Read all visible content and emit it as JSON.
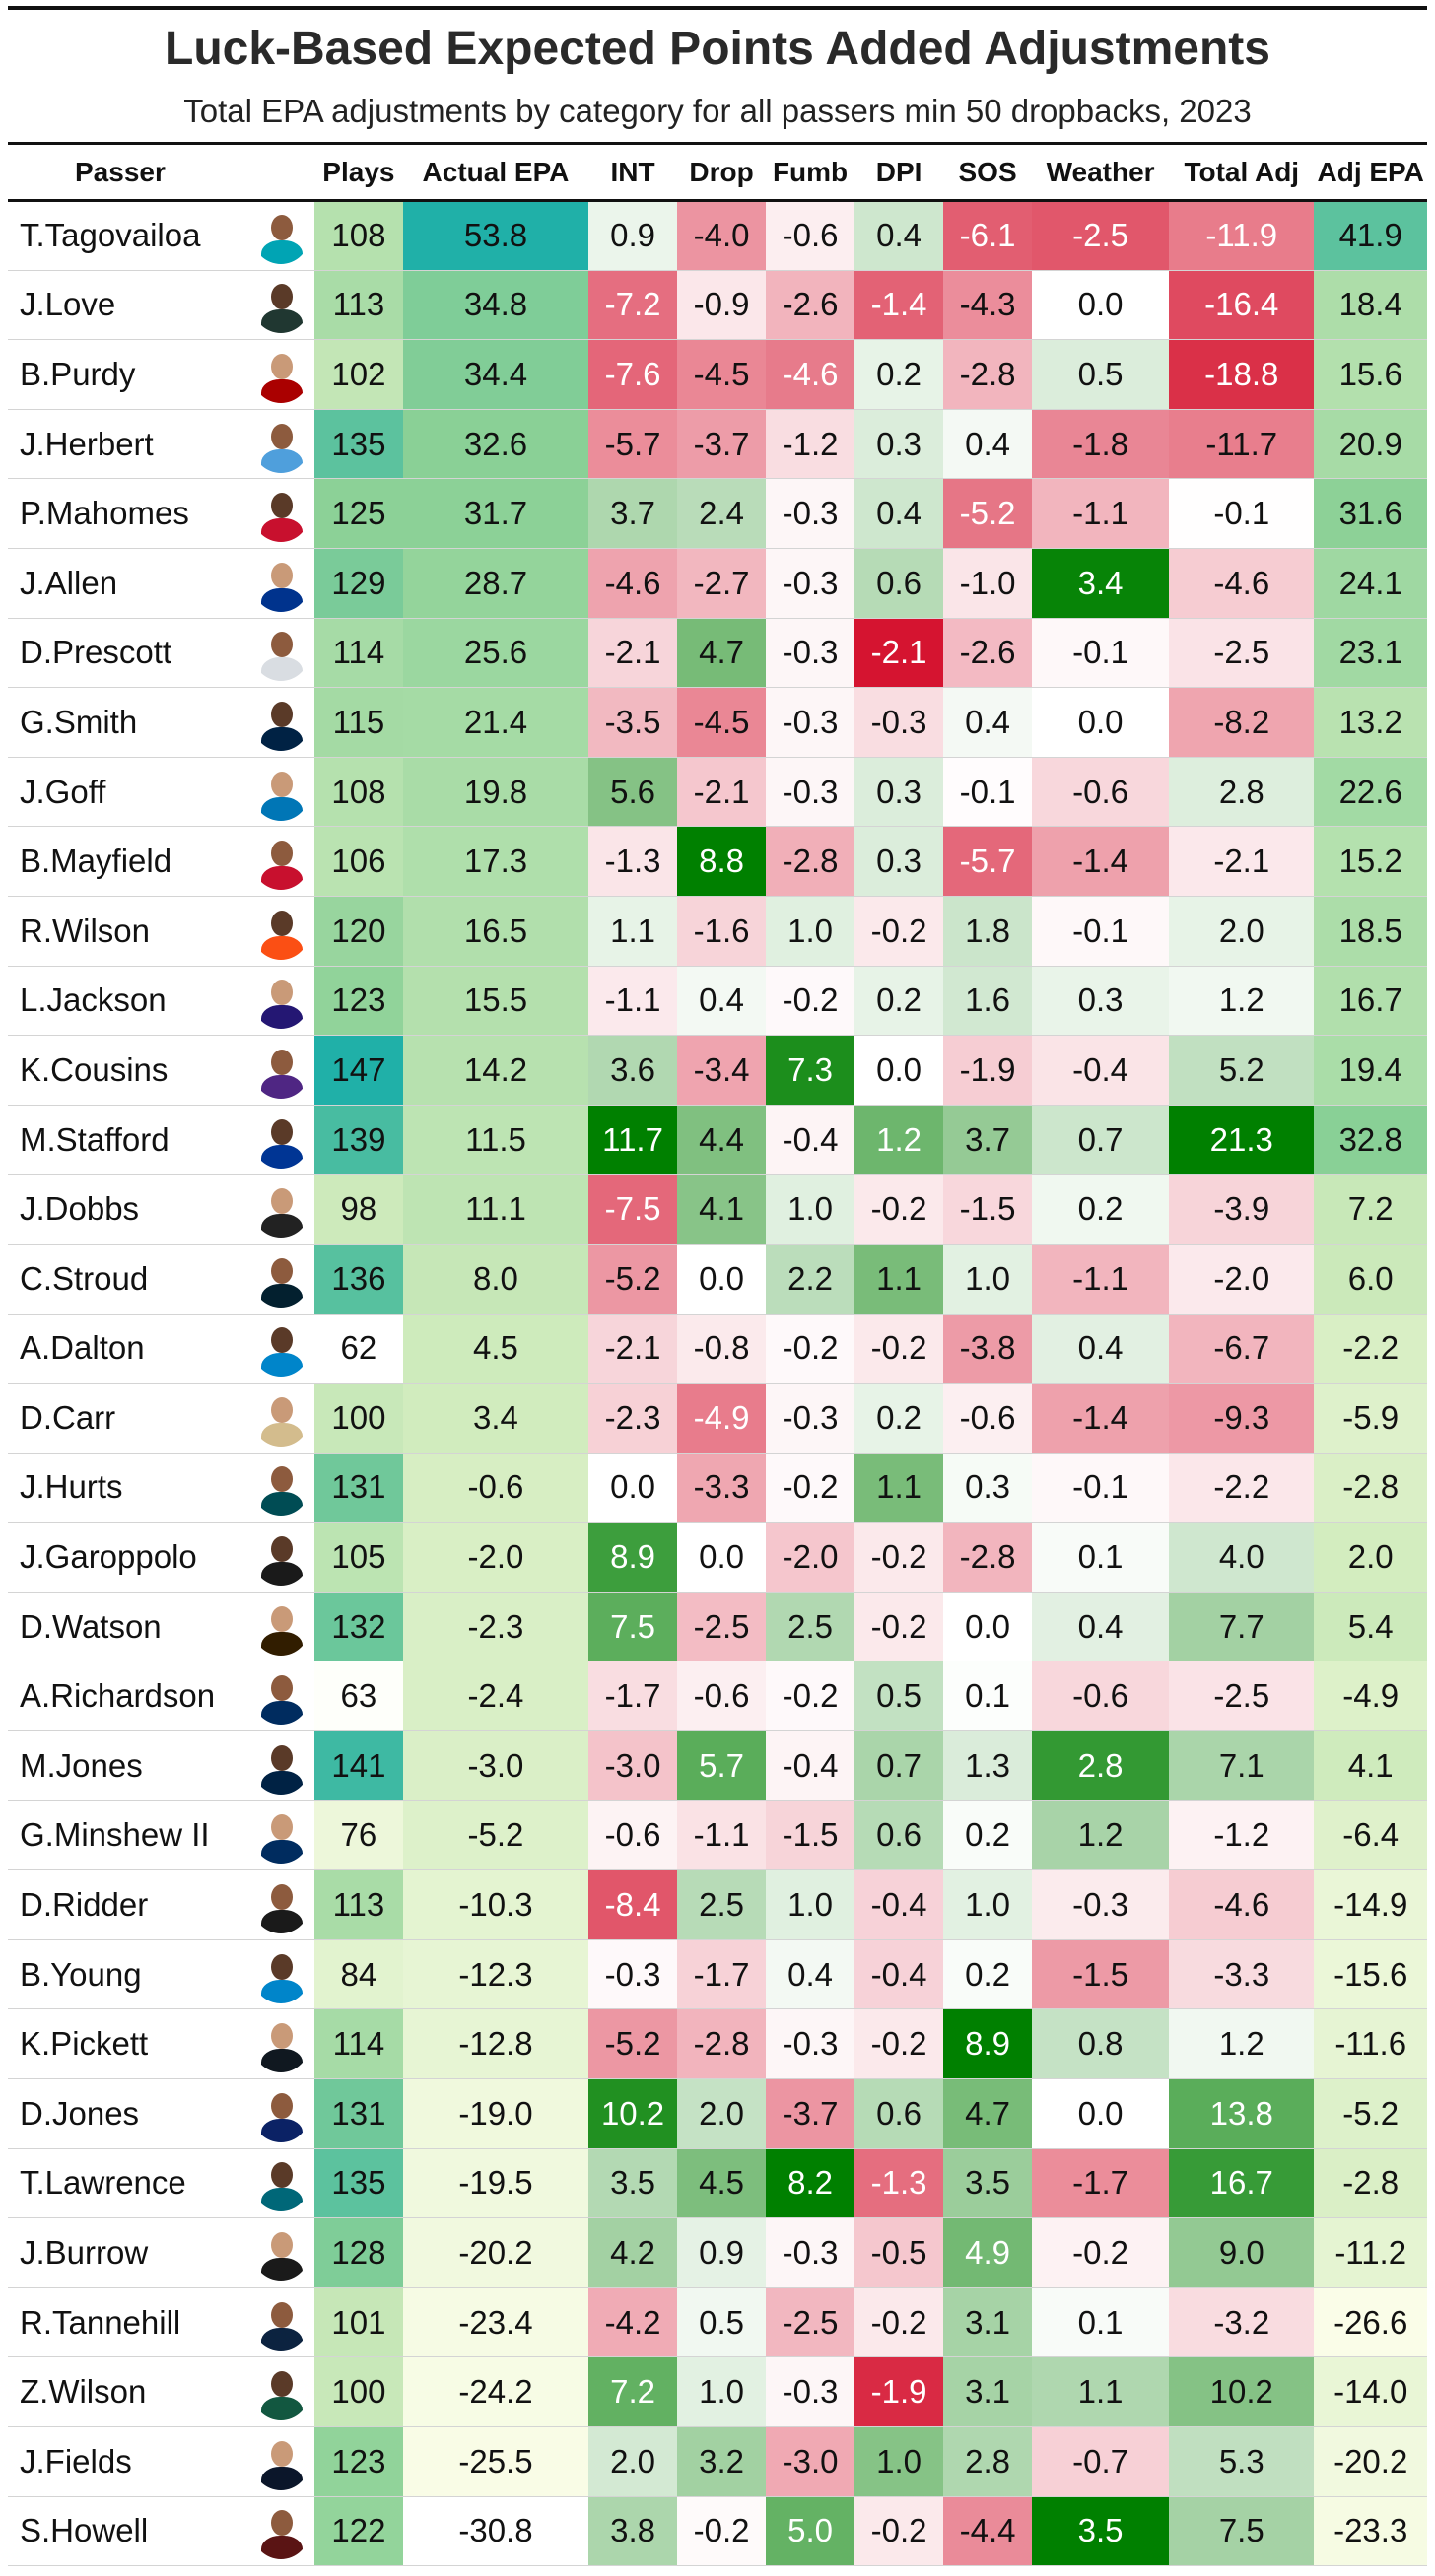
{
  "title": "Luck-Based Expected Points Added Adjustments",
  "subtitle": "Total EPA adjustments by category for all passers min 50 dropbacks, 2023",
  "chart_data": {
    "type": "table",
    "columns": [
      "Passer",
      "",
      "Plays",
      "Actual EPA",
      "INT",
      "Drop",
      "Fumb",
      "DPI",
      "SOS",
      "Weather",
      "Total Adj",
      "Adj EPA"
    ],
    "rows": [
      {
        "passer": "T.Tagovailoa",
        "team_color": "#00a4b4",
        "plays": 108,
        "actual": 53.8,
        "int": 0.9,
        "drop": -4.0,
        "fumb": -0.6,
        "dpi": 0.4,
        "sos": -6.1,
        "weather": -2.5,
        "total": -11.9,
        "adj": 41.9
      },
      {
        "passer": "J.Love",
        "team_color": "#203731",
        "plays": 113,
        "actual": 34.8,
        "int": -7.2,
        "drop": -0.9,
        "fumb": -2.6,
        "dpi": -1.4,
        "sos": -4.3,
        "weather": 0.0,
        "total": -16.4,
        "adj": 18.4
      },
      {
        "passer": "B.Purdy",
        "team_color": "#aa0000",
        "plays": 102,
        "actual": 34.4,
        "int": -7.6,
        "drop": -4.5,
        "fumb": -4.6,
        "dpi": 0.2,
        "sos": -2.8,
        "weather": 0.5,
        "total": -18.8,
        "adj": 15.6
      },
      {
        "passer": "J.Herbert",
        "team_color": "#4f9fdc",
        "plays": 135,
        "actual": 32.6,
        "int": -5.7,
        "drop": -3.7,
        "fumb": -1.2,
        "dpi": 0.3,
        "sos": 0.4,
        "weather": -1.8,
        "total": -11.7,
        "adj": 20.9
      },
      {
        "passer": "P.Mahomes",
        "team_color": "#c8102e",
        "plays": 125,
        "actual": 31.7,
        "int": 3.7,
        "drop": 2.4,
        "fumb": -0.3,
        "dpi": 0.4,
        "sos": -5.2,
        "weather": -1.1,
        "total": -0.1,
        "adj": 31.6
      },
      {
        "passer": "J.Allen",
        "team_color": "#00338d",
        "plays": 129,
        "actual": 28.7,
        "int": -4.6,
        "drop": -2.7,
        "fumb": -0.3,
        "dpi": 0.6,
        "sos": -1.0,
        "weather": 3.4,
        "total": -4.6,
        "adj": 24.1
      },
      {
        "passer": "D.Prescott",
        "team_color": "#d9dde2",
        "plays": 114,
        "actual": 25.6,
        "int": -2.1,
        "drop": 4.7,
        "fumb": -0.3,
        "dpi": -2.1,
        "sos": -2.6,
        "weather": -0.1,
        "total": -2.5,
        "adj": 23.1
      },
      {
        "passer": "G.Smith",
        "team_color": "#002244",
        "plays": 115,
        "actual": 21.4,
        "int": -3.5,
        "drop": -4.5,
        "fumb": -0.3,
        "dpi": -0.3,
        "sos": 0.4,
        "weather": 0.0,
        "total": -8.2,
        "adj": 13.2
      },
      {
        "passer": "J.Goff",
        "team_color": "#0076b6",
        "plays": 108,
        "actual": 19.8,
        "int": 5.6,
        "drop": -2.1,
        "fumb": -0.3,
        "dpi": 0.3,
        "sos": -0.1,
        "weather": -0.6,
        "total": 2.8,
        "adj": 22.6
      },
      {
        "passer": "B.Mayfield",
        "team_color": "#c8102e",
        "plays": 106,
        "actual": 17.3,
        "int": -1.3,
        "drop": 8.8,
        "fumb": -2.8,
        "dpi": 0.3,
        "sos": -5.7,
        "weather": -1.4,
        "total": -2.1,
        "adj": 15.2
      },
      {
        "passer": "R.Wilson",
        "team_color": "#fb4f14",
        "plays": 120,
        "actual": 16.5,
        "int": 1.1,
        "drop": -1.6,
        "fumb": 1.0,
        "dpi": -0.2,
        "sos": 1.8,
        "weather": -0.1,
        "total": 2.0,
        "adj": 18.5
      },
      {
        "passer": "L.Jackson",
        "team_color": "#241773",
        "plays": 123,
        "actual": 15.5,
        "int": -1.1,
        "drop": 0.4,
        "fumb": -0.2,
        "dpi": 0.2,
        "sos": 1.6,
        "weather": 0.3,
        "total": 1.2,
        "adj": 16.7
      },
      {
        "passer": "K.Cousins",
        "team_color": "#4f2683",
        "plays": 147,
        "actual": 14.2,
        "int": 3.6,
        "drop": -3.4,
        "fumb": 7.3,
        "dpi": 0.0,
        "sos": -1.9,
        "weather": -0.4,
        "total": 5.2,
        "adj": 19.4
      },
      {
        "passer": "M.Stafford",
        "team_color": "#003594",
        "plays": 139,
        "actual": 11.5,
        "int": 11.7,
        "drop": 4.4,
        "fumb": -0.4,
        "dpi": 1.2,
        "sos": 3.7,
        "weather": 0.7,
        "total": 21.3,
        "adj": 32.8
      },
      {
        "passer": "J.Dobbs",
        "team_color": "#222222",
        "plays": 98,
        "actual": 11.1,
        "int": -7.5,
        "drop": 4.1,
        "fumb": 1.0,
        "dpi": -0.2,
        "sos": -1.5,
        "weather": 0.2,
        "total": -3.9,
        "adj": 7.2
      },
      {
        "passer": "C.Stroud",
        "team_color": "#03202f",
        "plays": 136,
        "actual": 8.0,
        "int": -5.2,
        "drop": 0.0,
        "fumb": 2.2,
        "dpi": 1.1,
        "sos": 1.0,
        "weather": -1.1,
        "total": -2.0,
        "adj": 6.0
      },
      {
        "passer": "A.Dalton",
        "team_color": "#0085ca",
        "plays": 62,
        "actual": 4.5,
        "int": -2.1,
        "drop": -0.8,
        "fumb": -0.2,
        "dpi": -0.2,
        "sos": -3.8,
        "weather": 0.4,
        "total": -6.7,
        "adj": -2.2
      },
      {
        "passer": "D.Carr",
        "team_color": "#d3bc8d",
        "plays": 100,
        "actual": 3.4,
        "int": -2.3,
        "drop": -4.9,
        "fumb": -0.3,
        "dpi": 0.2,
        "sos": -0.6,
        "weather": -1.4,
        "total": -9.3,
        "adj": -5.9
      },
      {
        "passer": "J.Hurts",
        "team_color": "#004c54",
        "plays": 131,
        "actual": -0.6,
        "int": 0.0,
        "drop": -3.3,
        "fumb": -0.2,
        "dpi": 1.1,
        "sos": 0.3,
        "weather": -0.1,
        "total": -2.2,
        "adj": -2.8
      },
      {
        "passer": "J.Garoppolo",
        "team_color": "#1a1a1a",
        "plays": 105,
        "actual": -2.0,
        "int": 8.9,
        "drop": 0.0,
        "fumb": -2.0,
        "dpi": -0.2,
        "sos": -2.8,
        "weather": 0.1,
        "total": 4.0,
        "adj": 2.0
      },
      {
        "passer": "D.Watson",
        "team_color": "#311d00",
        "plays": 132,
        "actual": -2.3,
        "int": 7.5,
        "drop": -2.5,
        "fumb": 2.5,
        "dpi": -0.2,
        "sos": 0.0,
        "weather": 0.4,
        "total": 7.7,
        "adj": 5.4
      },
      {
        "passer": "A.Richardson",
        "team_color": "#002c5f",
        "plays": 63,
        "actual": -2.4,
        "int": -1.7,
        "drop": -0.6,
        "fumb": -0.2,
        "dpi": 0.5,
        "sos": 0.1,
        "weather": -0.6,
        "total": -2.5,
        "adj": -4.9
      },
      {
        "passer": "M.Jones",
        "team_color": "#002244",
        "plays": 141,
        "actual": -3.0,
        "int": -3.0,
        "drop": 5.7,
        "fumb": -0.4,
        "dpi": 0.7,
        "sos": 1.3,
        "weather": 2.8,
        "total": 7.1,
        "adj": 4.1
      },
      {
        "passer": "G.Minshew II",
        "team_color": "#002c5f",
        "plays": 76,
        "actual": -5.2,
        "int": -0.6,
        "drop": -1.1,
        "fumb": -1.5,
        "dpi": 0.6,
        "sos": 0.2,
        "weather": 1.2,
        "total": -1.2,
        "adj": -6.4
      },
      {
        "passer": "D.Ridder",
        "team_color": "#1a1a1a",
        "plays": 113,
        "actual": -10.3,
        "int": -8.4,
        "drop": 2.5,
        "fumb": 1.0,
        "dpi": -0.4,
        "sos": 1.0,
        "weather": -0.3,
        "total": -4.6,
        "adj": -14.9
      },
      {
        "passer": "B.Young",
        "team_color": "#0085ca",
        "plays": 84,
        "actual": -12.3,
        "int": -0.3,
        "drop": -1.7,
        "fumb": 0.4,
        "dpi": -0.4,
        "sos": 0.2,
        "weather": -1.5,
        "total": -3.3,
        "adj": -15.6
      },
      {
        "passer": "K.Pickett",
        "team_color": "#101820",
        "plays": 114,
        "actual": -12.8,
        "int": -5.2,
        "drop": -2.8,
        "fumb": -0.3,
        "dpi": -0.2,
        "sos": 8.9,
        "weather": 0.8,
        "total": 1.2,
        "adj": -11.6
      },
      {
        "passer": "D.Jones",
        "team_color": "#0b2265",
        "plays": 131,
        "actual": -19.0,
        "int": 10.2,
        "drop": 2.0,
        "fumb": -3.7,
        "dpi": 0.6,
        "sos": 4.7,
        "weather": 0.0,
        "total": 13.8,
        "adj": -5.2
      },
      {
        "passer": "T.Lawrence",
        "team_color": "#006778",
        "plays": 135,
        "actual": -19.5,
        "int": 3.5,
        "drop": 4.5,
        "fumb": 8.2,
        "dpi": -1.3,
        "sos": 3.5,
        "weather": -1.7,
        "total": 16.7,
        "adj": -2.8
      },
      {
        "passer": "J.Burrow",
        "team_color": "#1a1a1a",
        "plays": 128,
        "actual": -20.2,
        "int": 4.2,
        "drop": 0.9,
        "fumb": -0.3,
        "dpi": -0.5,
        "sos": 4.9,
        "weather": -0.2,
        "total": 9.0,
        "adj": -11.2
      },
      {
        "passer": "R.Tannehill",
        "team_color": "#0c2340",
        "plays": 101,
        "actual": -23.4,
        "int": -4.2,
        "drop": 0.5,
        "fumb": -2.5,
        "dpi": -0.2,
        "sos": 3.1,
        "weather": 0.1,
        "total": -3.2,
        "adj": -26.6
      },
      {
        "passer": "Z.Wilson",
        "team_color": "#125740",
        "plays": 100,
        "actual": -24.2,
        "int": 7.2,
        "drop": 1.0,
        "fumb": -0.3,
        "dpi": -1.9,
        "sos": 3.1,
        "weather": 1.1,
        "total": 10.2,
        "adj": -14.0
      },
      {
        "passer": "J.Fields",
        "team_color": "#0b162a",
        "plays": 123,
        "actual": -25.5,
        "int": 2.0,
        "drop": 3.2,
        "fumb": -3.0,
        "dpi": 1.0,
        "sos": 2.8,
        "weather": -0.7,
        "total": 5.3,
        "adj": -20.2
      },
      {
        "passer": "S.Howell",
        "team_color": "#5a1414",
        "plays": 122,
        "actual": -30.8,
        "int": 3.8,
        "drop": -0.2,
        "fumb": 5.0,
        "dpi": -0.2,
        "sos": -4.4,
        "weather": 3.5,
        "total": 7.5,
        "adj": -23.3
      }
    ]
  }
}
